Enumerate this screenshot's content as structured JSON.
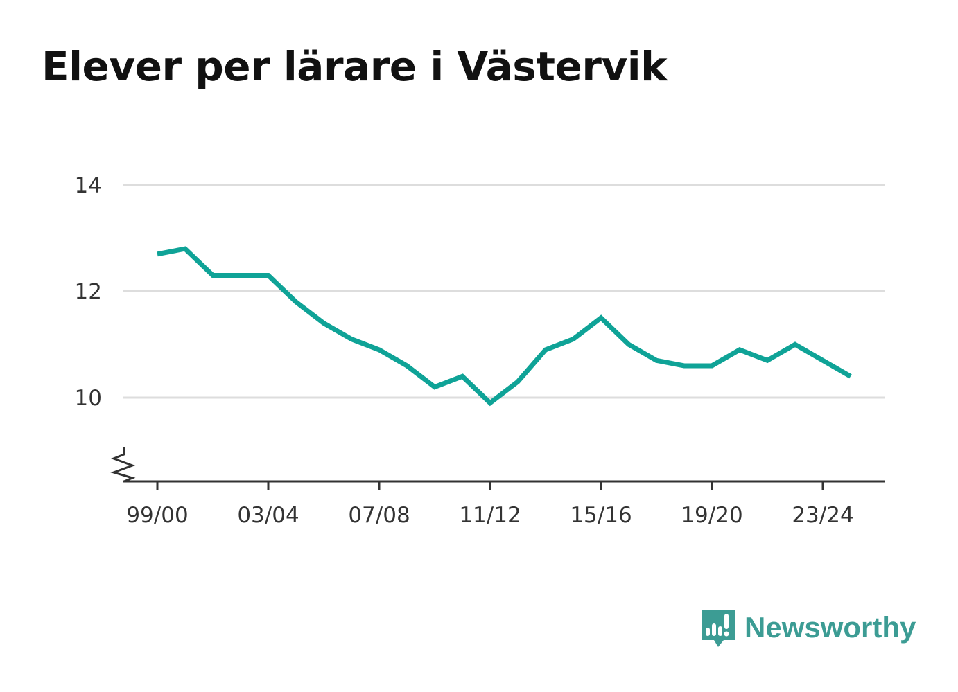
{
  "title": "Elever per lärare i Västervik",
  "brand": {
    "name": "Newsworthy",
    "icon": "newsworthy-logo-icon",
    "color": "#3c9c94"
  },
  "colors": {
    "line": "#0fa397",
    "grid": "#dddddd",
    "axis": "#333333",
    "text": "#333333"
  },
  "chart_data": {
    "type": "line",
    "title": "Elever per lärare i Västervik",
    "xlabel": "",
    "ylabel": "",
    "x": [
      "99/00",
      "00/01",
      "01/02",
      "02/03",
      "03/04",
      "04/05",
      "05/06",
      "06/07",
      "07/08",
      "08/09",
      "09/10",
      "10/11",
      "11/12",
      "12/13",
      "13/14",
      "14/15",
      "15/16",
      "16/17",
      "17/18",
      "18/19",
      "19/20",
      "20/21",
      "21/22",
      "22/23",
      "23/24",
      "24/25"
    ],
    "x_tick_labels": [
      "99/00",
      "03/04",
      "07/08",
      "11/12",
      "15/16",
      "19/20",
      "23/24"
    ],
    "y_tick_labels": [
      "10",
      "12",
      "14"
    ],
    "ylim": [
      8.4,
      14
    ],
    "y_axis_break": true,
    "grid": true,
    "series": [
      {
        "values": [
          12.7,
          12.8,
          12.3,
          12.3,
          12.3,
          11.8,
          11.4,
          11.1,
          10.9,
          10.6,
          10.2,
          10.4,
          9.9,
          10.3,
          10.9,
          11.1,
          11.5,
          11.0,
          10.7,
          10.6,
          10.6,
          10.9,
          10.7,
          11.0,
          10.7,
          10.4
        ]
      }
    ]
  }
}
